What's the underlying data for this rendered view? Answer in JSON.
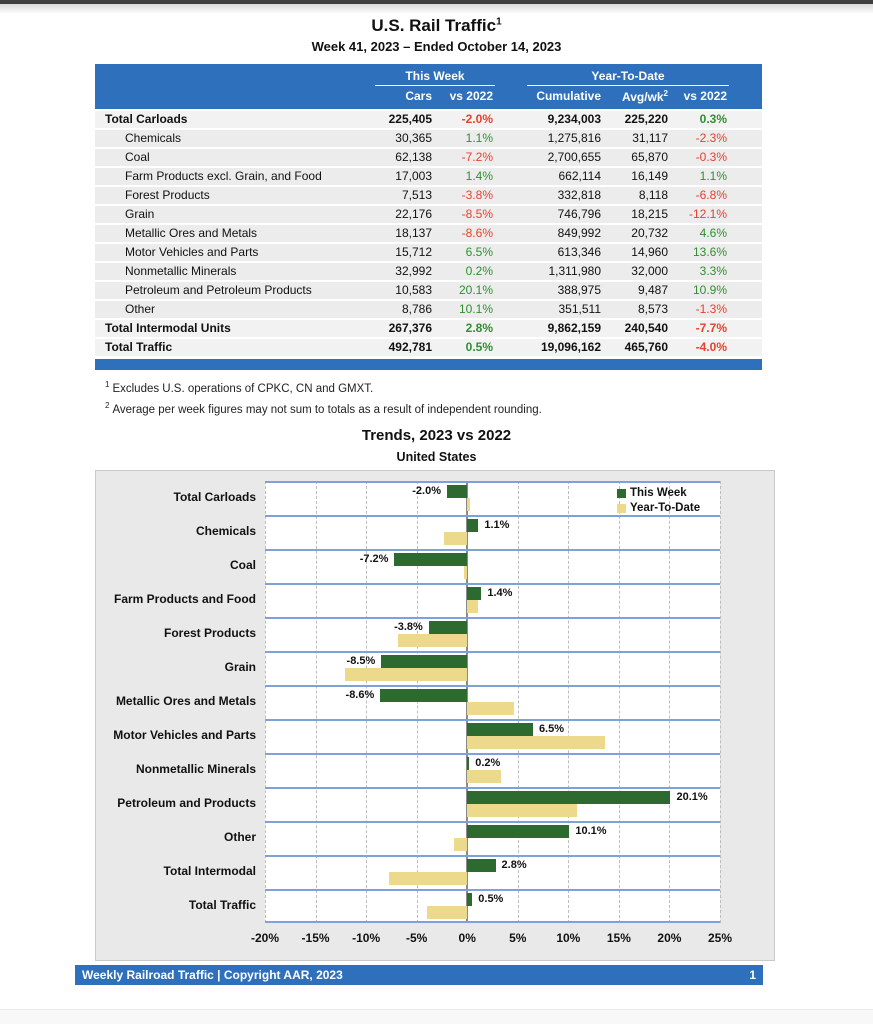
{
  "page": {
    "title": "U.S. Rail Traffic",
    "title_sup": "1",
    "subtitle": "Week 41, 2023 – Ended October 14, 2023"
  },
  "table": {
    "group_headers": {
      "this_week": "This Week",
      "ytd": "Year-To-Date"
    },
    "col_headers": {
      "cars": "Cars",
      "vs2022_week": "vs 2022",
      "cumulative": "Cumulative",
      "avg_wk": "Avg/wk",
      "avg_wk_sup": "2",
      "vs2022_ytd": "vs 2022"
    },
    "rows": [
      {
        "label": "Total Carloads",
        "total": true,
        "cars": "225,405",
        "vs_week": "-2.0%",
        "cumulative": "9,234,003",
        "avg_wk": "225,220",
        "vs_ytd": "0.3%"
      },
      {
        "label": "Chemicals",
        "total": false,
        "cars": "30,365",
        "vs_week": "1.1%",
        "cumulative": "1,275,816",
        "avg_wk": "31,117",
        "vs_ytd": "-2.3%"
      },
      {
        "label": "Coal",
        "total": false,
        "cars": "62,138",
        "vs_week": "-7.2%",
        "cumulative": "2,700,655",
        "avg_wk": "65,870",
        "vs_ytd": "-0.3%"
      },
      {
        "label": "Farm Products excl. Grain, and Food",
        "total": false,
        "cars": "17,003",
        "vs_week": "1.4%",
        "cumulative": "662,114",
        "avg_wk": "16,149",
        "vs_ytd": "1.1%"
      },
      {
        "label": "Forest Products",
        "total": false,
        "cars": "7,513",
        "vs_week": "-3.8%",
        "cumulative": "332,818",
        "avg_wk": "8,118",
        "vs_ytd": "-6.8%"
      },
      {
        "label": "Grain",
        "total": false,
        "cars": "22,176",
        "vs_week": "-8.5%",
        "cumulative": "746,796",
        "avg_wk": "18,215",
        "vs_ytd": "-12.1%"
      },
      {
        "label": "Metallic Ores and Metals",
        "total": false,
        "cars": "18,137",
        "vs_week": "-8.6%",
        "cumulative": "849,992",
        "avg_wk": "20,732",
        "vs_ytd": "4.6%"
      },
      {
        "label": "Motor Vehicles and Parts",
        "total": false,
        "cars": "15,712",
        "vs_week": "6.5%",
        "cumulative": "613,346",
        "avg_wk": "14,960",
        "vs_ytd": "13.6%"
      },
      {
        "label": "Nonmetallic Minerals",
        "total": false,
        "cars": "32,992",
        "vs_week": "0.2%",
        "cumulative": "1,311,980",
        "avg_wk": "32,000",
        "vs_ytd": "3.3%"
      },
      {
        "label": "Petroleum and Petroleum Products",
        "total": false,
        "cars": "10,583",
        "vs_week": "20.1%",
        "cumulative": "388,975",
        "avg_wk": "9,487",
        "vs_ytd": "10.9%"
      },
      {
        "label": "Other",
        "total": false,
        "cars": "8,786",
        "vs_week": "10.1%",
        "cumulative": "351,511",
        "avg_wk": "8,573",
        "vs_ytd": "-1.3%"
      },
      {
        "label": "Total Intermodal Units",
        "total": true,
        "cars": "267,376",
        "vs_week": "2.8%",
        "cumulative": "9,862,159",
        "avg_wk": "240,540",
        "vs_ytd": "-7.7%"
      },
      {
        "label": "Total Traffic",
        "total": true,
        "cars": "492,781",
        "vs_week": "0.5%",
        "cumulative": "19,096,162",
        "avg_wk": "465,760",
        "vs_ytd": "-4.0%"
      }
    ]
  },
  "footnotes": [
    {
      "sup": "1",
      "text": "Excludes U.S. operations of CPKC, CN and GMXT."
    },
    {
      "sup": "2",
      "text": "Average per week figures may not sum to totals as a result of independent rounding."
    }
  ],
  "chart_data": {
    "type": "bar",
    "orientation": "horizontal",
    "title": "Trends, 2023 vs 2022",
    "subtitle": "United States",
    "categories": [
      "Total Carloads",
      "Chemicals",
      "Coal",
      "Farm Products and Food",
      "Forest Products",
      "Grain",
      "Metallic Ores and Metals",
      "Motor Vehicles and Parts",
      "Nonmetallic Minerals",
      "Petroleum and Products",
      "Other",
      "Total Intermodal",
      "Total Traffic"
    ],
    "series": [
      {
        "name": "This Week",
        "color": "#2d6a2f",
        "values": [
          -2.0,
          1.1,
          -7.2,
          1.4,
          -3.8,
          -8.5,
          -8.6,
          6.5,
          0.2,
          20.1,
          10.1,
          2.8,
          0.5
        ],
        "labels": [
          "-2.0%",
          "1.1%",
          "-7.2%",
          "1.4%",
          "-3.8%",
          "-8.5%",
          "-8.6%",
          "6.5%",
          "0.2%",
          "20.1%",
          "10.1%",
          "2.8%",
          "0.5%"
        ]
      },
      {
        "name": "Year-To-Date",
        "color": "#ecd98b",
        "values": [
          0.3,
          -2.3,
          -0.3,
          1.1,
          -6.8,
          -12.1,
          4.6,
          13.6,
          3.3,
          10.9,
          -1.3,
          -7.7,
          -4.0
        ],
        "labels": []
      }
    ],
    "xlim": [
      -20,
      25
    ],
    "x_ticks": [
      "-20%",
      "-15%",
      "-10%",
      "-5%",
      "0%",
      "5%",
      "10%",
      "15%",
      "20%",
      "25%"
    ],
    "grid": true,
    "legend_position": "top-right",
    "bar_labels_shown_for": "This Week"
  },
  "footer": {
    "text": "Weekly Railroad Traffic | Copyright AAR, 2023",
    "page": "1"
  },
  "colors": {
    "header_blue": "#2e70bc",
    "row_gray": "#ececec",
    "positive_green": "#2f8f2f",
    "negative_red": "#e8402e",
    "bar_green": "#2d6a2f",
    "bar_tan": "#ecd98b",
    "band_line_blue": "#7ca2d8"
  }
}
